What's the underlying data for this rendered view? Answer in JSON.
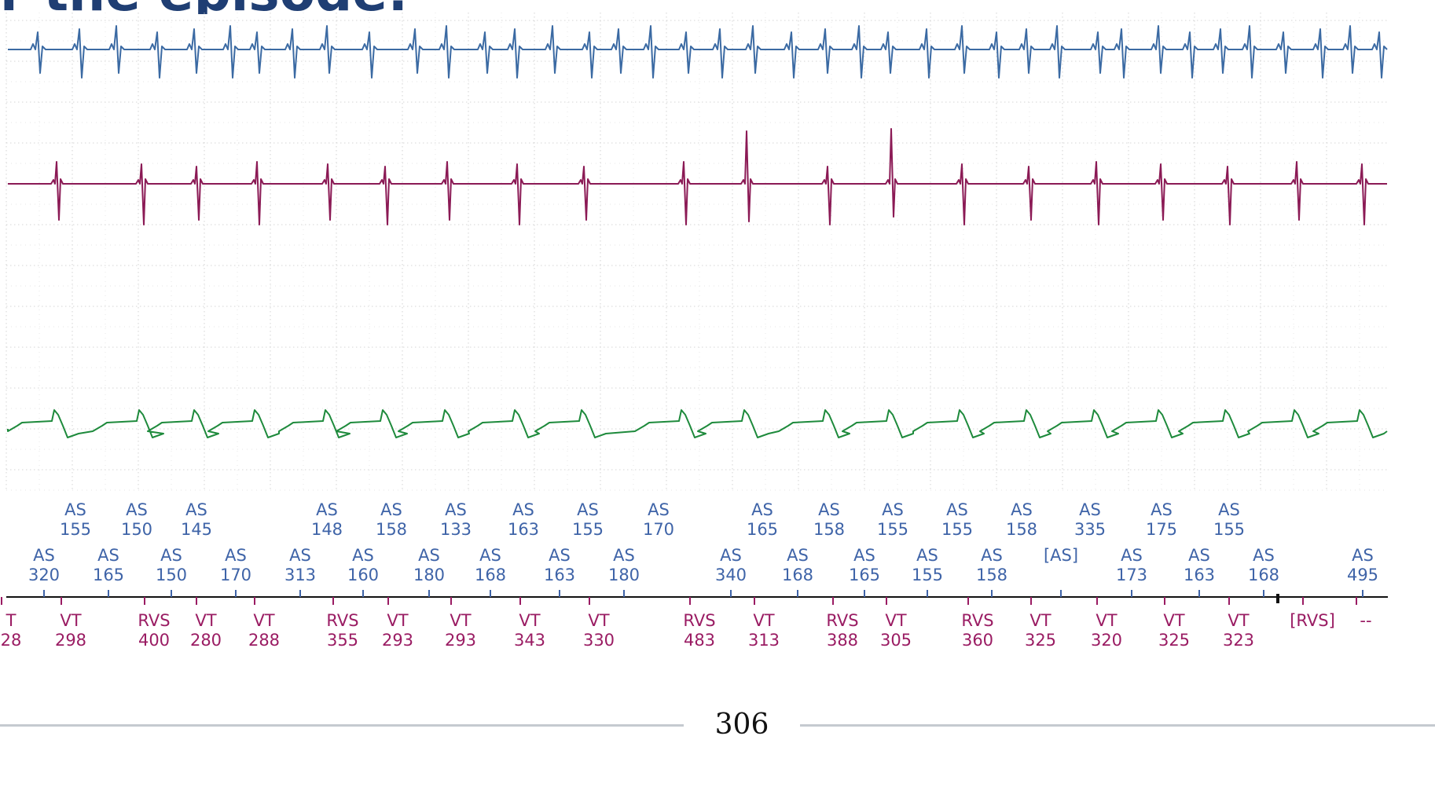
{
  "title": "r the episode:",
  "page_number": "306",
  "colors": {
    "title": "#1f3e73",
    "atrial_trace": "#3b6aa3",
    "rv_trace": "#8b1a55",
    "far_field_trace": "#1e8a3c",
    "atrial_markers": "#3f64a8",
    "ventricular_markers": "#9a1c63",
    "grid": "#c9c9c9",
    "marker_axis": "#111111"
  },
  "atrial_markers_top": [
    {
      "label": "AS",
      "value": "155"
    },
    {
      "label": "AS",
      "value": "150"
    },
    {
      "label": "AS",
      "value": "145"
    },
    {
      "label": "AS",
      "value": "148"
    },
    {
      "label": "AS",
      "value": "158"
    },
    {
      "label": "AS",
      "value": "133"
    },
    {
      "label": "AS",
      "value": "163"
    },
    {
      "label": "AS",
      "value": "155"
    },
    {
      "label": "AS",
      "value": "170"
    },
    {
      "label": "AS",
      "value": "165"
    },
    {
      "label": "AS",
      "value": "158"
    },
    {
      "label": "AS",
      "value": "155"
    },
    {
      "label": "AS",
      "value": "155"
    },
    {
      "label": "AS",
      "value": "158"
    },
    {
      "label": "AS",
      "value": "335"
    },
    {
      "label": "AS",
      "value": "175"
    },
    {
      "label": "AS",
      "value": "155"
    }
  ],
  "atrial_markers_bottom": [
    {
      "label": "AS",
      "value": "320"
    },
    {
      "label": "AS",
      "value": "165"
    },
    {
      "label": "AS",
      "value": "150"
    },
    {
      "label": "AS",
      "value": "170"
    },
    {
      "label": "AS",
      "value": "313"
    },
    {
      "label": "AS",
      "value": "160"
    },
    {
      "label": "AS",
      "value": "180"
    },
    {
      "label": "AS",
      "value": "168"
    },
    {
      "label": "AS",
      "value": "163"
    },
    {
      "label": "AS",
      "value": "180"
    },
    {
      "label": "AS",
      "value": "340"
    },
    {
      "label": "AS",
      "value": "168"
    },
    {
      "label": "AS",
      "value": "165"
    },
    {
      "label": "AS",
      "value": "155"
    },
    {
      "label": "AS",
      "value": "158"
    },
    {
      "label": "[AS]",
      "value": ""
    },
    {
      "label": "AS",
      "value": "173"
    },
    {
      "label": "AS",
      "value": "163"
    },
    {
      "label": "AS",
      "value": "168"
    },
    {
      "label": "AS",
      "value": "495"
    }
  ],
  "ventricular_markers": [
    {
      "label": "T",
      "value": "28"
    },
    {
      "label": "VT",
      "value": "298"
    },
    {
      "label": "RVS",
      "value": "400"
    },
    {
      "label": "VT",
      "value": "280"
    },
    {
      "label": "VT",
      "value": "288"
    },
    {
      "label": "RVS",
      "value": "355"
    },
    {
      "label": "VT",
      "value": "293"
    },
    {
      "label": "VT",
      "value": "293"
    },
    {
      "label": "VT",
      "value": "343"
    },
    {
      "label": "VT",
      "value": "330"
    },
    {
      "label": "RVS",
      "value": "483"
    },
    {
      "label": "VT",
      "value": "313"
    },
    {
      "label": "RVS",
      "value": "388"
    },
    {
      "label": "VT",
      "value": "305"
    },
    {
      "label": "RVS",
      "value": "360"
    },
    {
      "label": "VT",
      "value": "325"
    },
    {
      "label": "VT",
      "value": "320"
    },
    {
      "label": "VT",
      "value": "325"
    },
    {
      "label": "VT",
      "value": "323"
    },
    {
      "label": "[RVS]",
      "value": ""
    },
    {
      "label": "--",
      "value": ""
    }
  ]
}
